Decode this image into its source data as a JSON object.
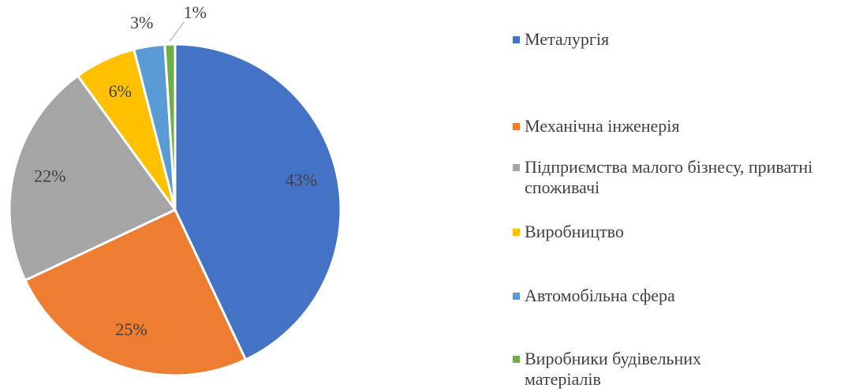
{
  "chart_data": {
    "type": "pie",
    "categories": [
      "Металургія",
      "Механічна інженерія",
      "Підприємства малого бізнесу, приватні споживачі",
      "Виробництво",
      "Автомобільна сфера",
      "Виробники будівельних матеріалів"
    ],
    "values": [
      43,
      25,
      22,
      6,
      3,
      1
    ],
    "value_labels": [
      "43%",
      "25%",
      "22%",
      "6%",
      "3%",
      "1%"
    ],
    "colors": [
      "#4472c4",
      "#ed7d31",
      "#a5a5a5",
      "#ffc000",
      "#5b9bd5",
      "#70ad47"
    ]
  }
}
